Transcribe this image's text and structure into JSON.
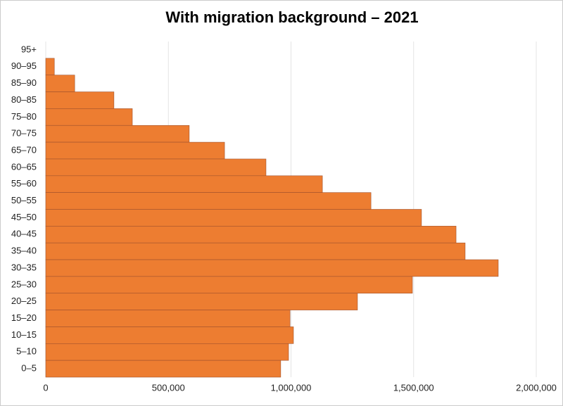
{
  "chart_data": {
    "type": "hbar",
    "title": "With migration background – 2021",
    "categories": [
      "95+",
      "90–95",
      "85–90",
      "80–85",
      "75–80",
      "70–75",
      "65–70",
      "60–65",
      "55–60",
      "50–55",
      "45–50",
      "40–45",
      "35–40",
      "30–35",
      "25–30",
      "20–25",
      "15–20",
      "10–15",
      "5–10",
      "0–5"
    ],
    "values": [
      0,
      35000,
      118000,
      278000,
      353000,
      585000,
      729000,
      898000,
      1128000,
      1326000,
      1532000,
      1673000,
      1710000,
      1845000,
      1495000,
      1271000,
      996000,
      1010000,
      990000,
      958000
    ],
    "color": "#ed7d31",
    "xlim": [
      0,
      2000000
    ],
    "xticks": [
      0,
      {
        "value": 500000,
        "label": "500,000"
      },
      {
        "value": 1000000,
        "label": "1,000,000"
      },
      {
        "value": 1500000,
        "label": "1,500,000"
      },
      {
        "value": 2000000,
        "label": "2,000,000"
      }
    ],
    "grid": true
  }
}
